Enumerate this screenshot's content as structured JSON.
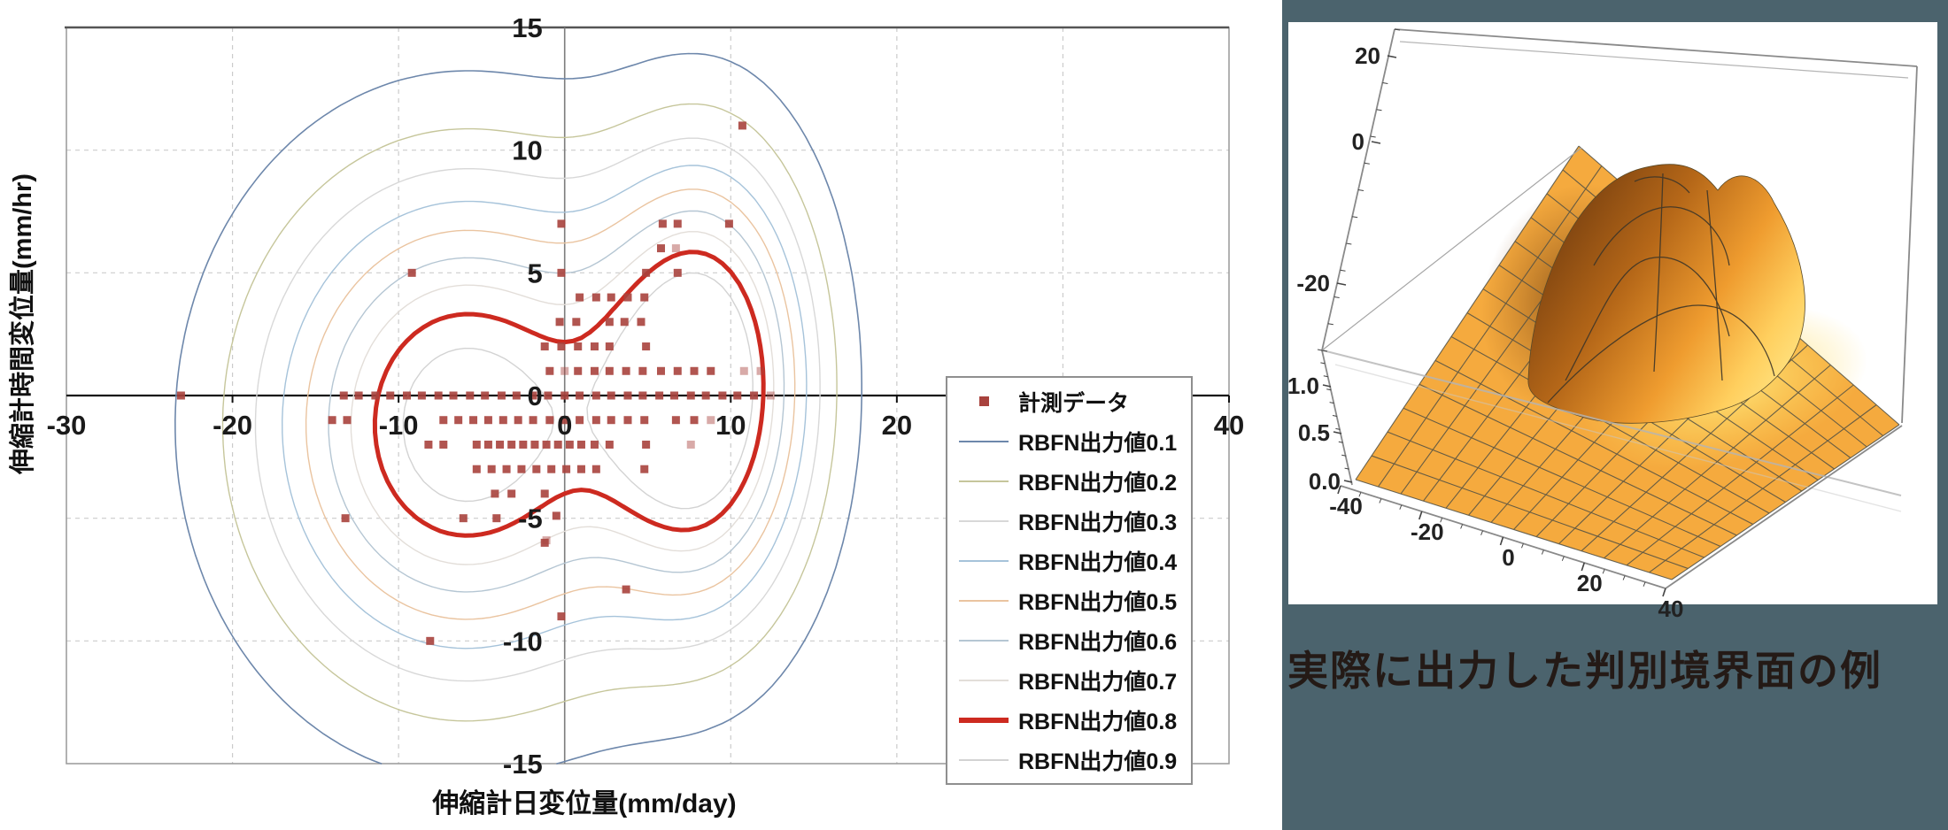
{
  "page": {
    "background": "#ffffff",
    "panel_background": "#4b636d",
    "caption_color": "#241a16"
  },
  "chart_data": [
    {
      "type": "contour+scatter",
      "title": "",
      "xlabel": "伸縮計日変位量(mm/day)",
      "ylabel": "伸縮計時間変位量(mm/hr)",
      "xlim": [
        -30,
        40
      ],
      "ylim": [
        -15,
        15
      ],
      "x_tick_labels": [
        -30,
        -20,
        -10,
        0,
        10,
        20,
        40
      ],
      "y_tick_labels": [
        15,
        10,
        5,
        0,
        -5,
        -10,
        -15
      ],
      "x_gridlines": [
        -20,
        -10,
        10,
        20,
        30
      ],
      "y_gridlines": [
        -10,
        -5,
        5,
        10
      ],
      "grid_on": true,
      "legend_position": "right-inside",
      "contour_levels": [
        0.1,
        0.2,
        0.3,
        0.4,
        0.5,
        0.6,
        0.7,
        0.8,
        0.9
      ],
      "contour_colors": [
        "#6d87ab",
        "#c6c69b",
        "#d8d8d8",
        "#a6c3da",
        "#eac4a0",
        "#b5c6d3",
        "#e3ded9",
        "#cd2a20",
        "#d3d3d3"
      ],
      "contour_widths": [
        1.6,
        1.4,
        1.4,
        1.4,
        1.4,
        1.4,
        1.4,
        5,
        1.4
      ],
      "rbf_model": {
        "bumps": [
          {
            "cx": -6,
            "cy": -1.2,
            "sx": 11.5,
            "sy": 9.5,
            "a": 1.0
          },
          {
            "cx": 8.5,
            "cy": 0.5,
            "sx": 6.0,
            "sy": 8.5,
            "a": 1.0
          }
        ]
      },
      "legend": [
        {
          "label": "計測データ",
          "type": "marker",
          "color": "#a8423d",
          "width": 0
        },
        {
          "label": "RBFN出力値0.1",
          "type": "line",
          "color": "#6d87ab",
          "width": 2
        },
        {
          "label": "RBFN出力値0.2",
          "type": "line",
          "color": "#c6c69b",
          "width": 2
        },
        {
          "label": "RBFN出力値0.3",
          "type": "line",
          "color": "#d8d8d8",
          "width": 2
        },
        {
          "label": "RBFN出力値0.4",
          "type": "line",
          "color": "#a6c3da",
          "width": 2
        },
        {
          "label": "RBFN出力値0.5",
          "type": "line",
          "color": "#eac4a0",
          "width": 2
        },
        {
          "label": "RBFN出力値0.6",
          "type": "line",
          "color": "#b5c6d3",
          "width": 2
        },
        {
          "label": "RBFN出力値0.7",
          "type": "line",
          "color": "#e3ded9",
          "width": 2
        },
        {
          "label": "RBFN出力値0.8",
          "type": "line",
          "color": "#cd2a20",
          "width": 6
        },
        {
          "label": "RBFN出力値0.9",
          "type": "line",
          "color": "#d3d3d3",
          "width": 2
        }
      ],
      "scatter_series_name": "計測データ",
      "scatter_color": "#a8423d",
      "points": [
        [
          10.7,
          11
        ],
        [
          -0.2,
          7
        ],
        [
          5.9,
          7
        ],
        [
          6.8,
          7
        ],
        [
          9.9,
          7
        ],
        [
          5.8,
          6
        ],
        [
          6.7,
          6,
          1
        ],
        [
          -9.2,
          5
        ],
        [
          -0.2,
          5
        ],
        [
          4.9,
          5
        ],
        [
          6.8,
          5
        ],
        [
          0.9,
          4
        ],
        [
          1.9,
          4
        ],
        [
          2.8,
          4
        ],
        [
          3.8,
          4
        ],
        [
          4.8,
          4
        ],
        [
          -0.3,
          3
        ],
        [
          0.7,
          3
        ],
        [
          2.7,
          3
        ],
        [
          3.6,
          3
        ],
        [
          4.6,
          3
        ],
        [
          -1.2,
          2
        ],
        [
          -0.2,
          2
        ],
        [
          0.8,
          2
        ],
        [
          1.8,
          2
        ],
        [
          2.7,
          2
        ],
        [
          4.9,
          2
        ],
        [
          -0.9,
          1
        ],
        [
          0,
          1,
          1
        ],
        [
          0.8,
          1
        ],
        [
          1.8,
          1
        ],
        [
          2.7,
          1
        ],
        [
          3.7,
          1
        ],
        [
          4.7,
          1
        ],
        [
          5.8,
          1
        ],
        [
          6.8,
          1
        ],
        [
          7.8,
          1
        ],
        [
          8.8,
          1
        ],
        [
          10.8,
          1,
          1
        ],
        [
          11.8,
          1,
          1
        ],
        [
          -23.1,
          0
        ],
        [
          -13.3,
          0
        ],
        [
          -12.4,
          0
        ],
        [
          -11.4,
          0
        ],
        [
          -10.5,
          0
        ],
        [
          -9.5,
          0
        ],
        [
          -8.6,
          0
        ],
        [
          -7.6,
          0
        ],
        [
          -6.7,
          0
        ],
        [
          -5.7,
          0
        ],
        [
          -4.8,
          0
        ],
        [
          -3.8,
          0
        ],
        [
          -2.9,
          0
        ],
        [
          -1.9,
          0
        ],
        [
          -1.0,
          0
        ],
        [
          0,
          0
        ],
        [
          0.9,
          0
        ],
        [
          1.9,
          0
        ],
        [
          2.8,
          0
        ],
        [
          3.8,
          0
        ],
        [
          4.7,
          0
        ],
        [
          5.7,
          0
        ],
        [
          6.6,
          0
        ],
        [
          7.6,
          0
        ],
        [
          8.5,
          0
        ],
        [
          9.5,
          0
        ],
        [
          10.4,
          0
        ],
        [
          11.4,
          0
        ],
        [
          12.4,
          0,
          1
        ],
        [
          -14,
          -1
        ],
        [
          -13.1,
          -1
        ],
        [
          -7.3,
          -1
        ],
        [
          -6.4,
          -1
        ],
        [
          -5.5,
          -1
        ],
        [
          -4.6,
          -1
        ],
        [
          -3.7,
          -1
        ],
        [
          -2.8,
          -1
        ],
        [
          -1.9,
          -1
        ],
        [
          -0.9,
          -1
        ],
        [
          0,
          -1
        ],
        [
          0.9,
          -1
        ],
        [
          1.9,
          -1
        ],
        [
          2.8,
          -1
        ],
        [
          3.8,
          -1
        ],
        [
          4.8,
          -1
        ],
        [
          6.7,
          -1
        ],
        [
          7.8,
          -1
        ],
        [
          8.8,
          -1,
          1
        ],
        [
          -8.2,
          -2
        ],
        [
          -7.3,
          -2
        ],
        [
          -5.3,
          -2
        ],
        [
          -4.6,
          -2
        ],
        [
          -3.9,
          -2
        ],
        [
          -3.2,
          -2
        ],
        [
          -2.5,
          -2
        ],
        [
          -1.8,
          -2
        ],
        [
          -1.1,
          -2
        ],
        [
          -0.4,
          -2
        ],
        [
          0.3,
          -2
        ],
        [
          1.0,
          -2
        ],
        [
          1.8,
          -2
        ],
        [
          2.7,
          -2
        ],
        [
          4.9,
          -2
        ],
        [
          7.6,
          -2,
          1
        ],
        [
          -5.3,
          -3
        ],
        [
          -4.4,
          -3
        ],
        [
          -3.5,
          -3
        ],
        [
          -2.6,
          -3
        ],
        [
          -1.7,
          -3
        ],
        [
          -0.8,
          -3
        ],
        [
          0.1,
          -3
        ],
        [
          1.0,
          -3
        ],
        [
          1.9,
          -3
        ],
        [
          4.8,
          -3
        ],
        [
          -4.2,
          -4
        ],
        [
          -3.2,
          -4
        ],
        [
          -1.2,
          -4
        ],
        [
          -13.2,
          -5
        ],
        [
          -6.1,
          -5
        ],
        [
          -4.1,
          -5
        ],
        [
          -0.5,
          -4.9
        ],
        [
          -1.1,
          -5.9,
          1
        ],
        [
          -1.2,
          -6
        ],
        [
          3.7,
          -7.9
        ],
        [
          -0.2,
          -9
        ],
        [
          -8.1,
          -10
        ]
      ]
    },
    {
      "type": "surface",
      "caption": "実際に出力した判別境界面の例",
      "x_ticks": [
        "-40",
        "-20",
        "0",
        "20",
        "40"
      ],
      "y_ticks": [
        "20",
        "0",
        "-20"
      ],
      "z_ticks": [
        "1.0",
        "0.5",
        "0.0"
      ],
      "zlim": [
        0,
        1
      ],
      "surface_base_color": "#f5aa3e",
      "description": "RBFN output discrimination boundary surface: flat orange meshed plane over x,y in [-40,40] with a central peak rising to about 1.0 near the middle"
    }
  ],
  "left_chart": {
    "x_axis_title": "伸縮計日変位量(mm/day)",
    "y_axis_title": "伸縮計時間変位量(mm/hr)"
  },
  "right_panel": {
    "caption": "実際に出力した判別境界面の例"
  }
}
